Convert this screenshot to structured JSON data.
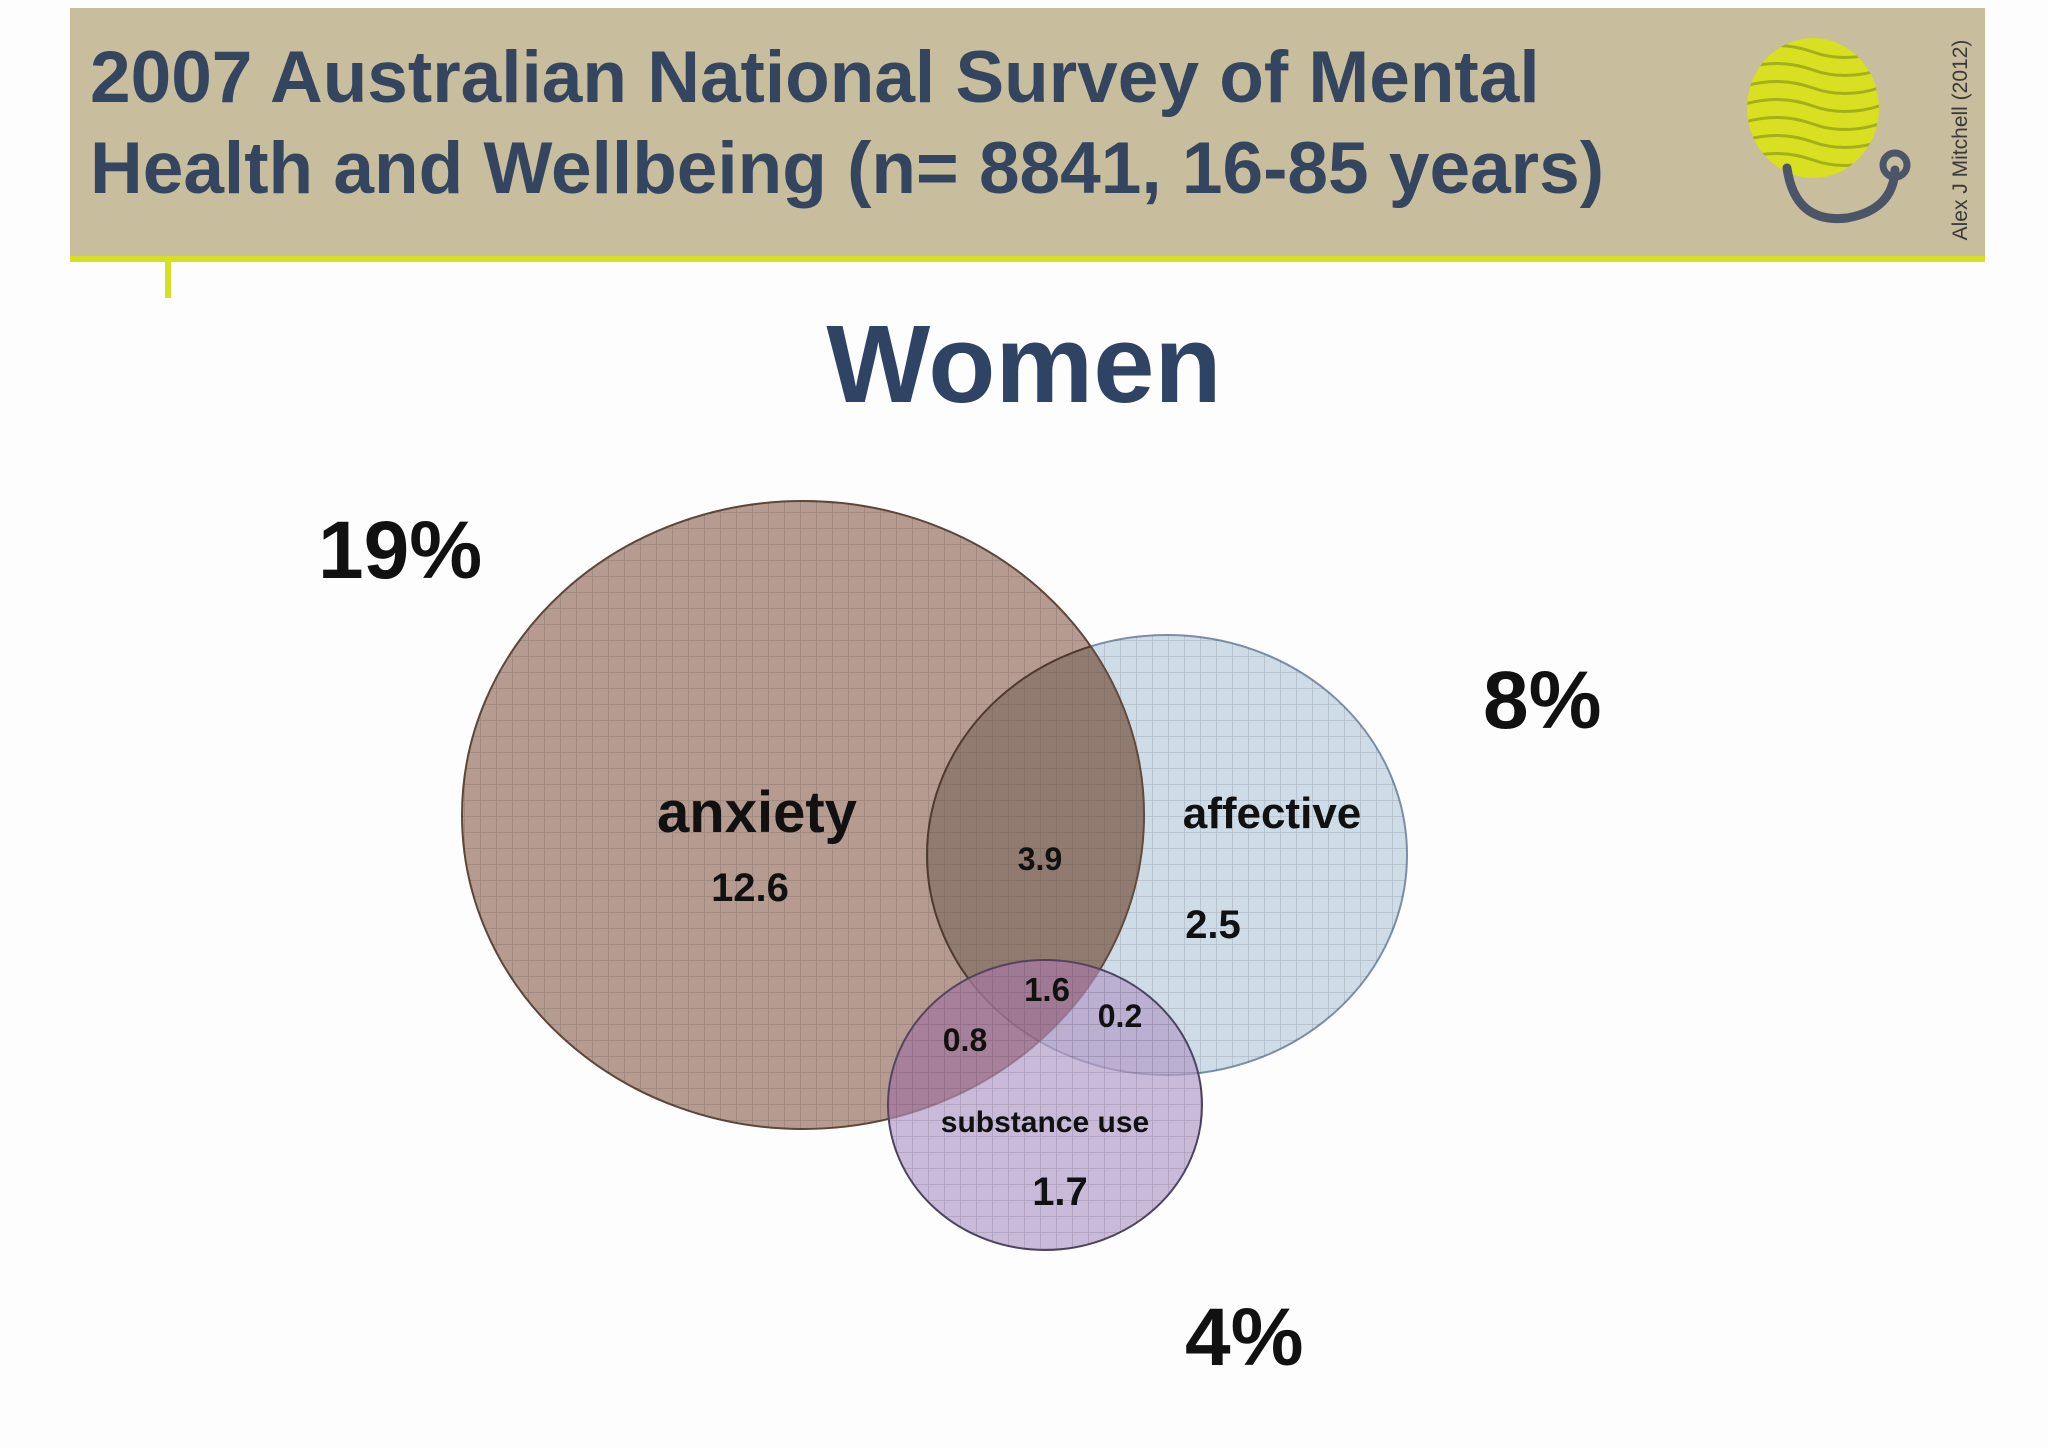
{
  "header": {
    "title_line_1": "2007 Australian National Survey of Mental",
    "title_line_2": "Health and Wellbeing (n= 8841, 16-85 years)",
    "author_credit": "Alex J Mitchell (2012)"
  },
  "diagram": {
    "title": "Women",
    "sets": {
      "anxiety": {
        "label": "anxiety",
        "total": "19%",
        "only": "12.6",
        "color": "#a8897c"
      },
      "affective": {
        "label": "affective",
        "total": "8%",
        "only": "2.5",
        "color": "#c9d8e6"
      },
      "substance_use": {
        "label": "substance use",
        "total": "4%",
        "only": "1.7",
        "color": "#b39cc9"
      }
    },
    "overlaps": {
      "anxiety_affective": "3.9",
      "anxiety_affective_substance": "1.6",
      "anxiety_substance": "0.8",
      "affective_substance": "0.2"
    }
  },
  "colors": {
    "header_band": "#c8bd9c",
    "header_rule": "#d6df24",
    "title_text": "#34455f",
    "logo_yellow": "#d9e021",
    "logo_stroke": "#4a5568"
  }
}
